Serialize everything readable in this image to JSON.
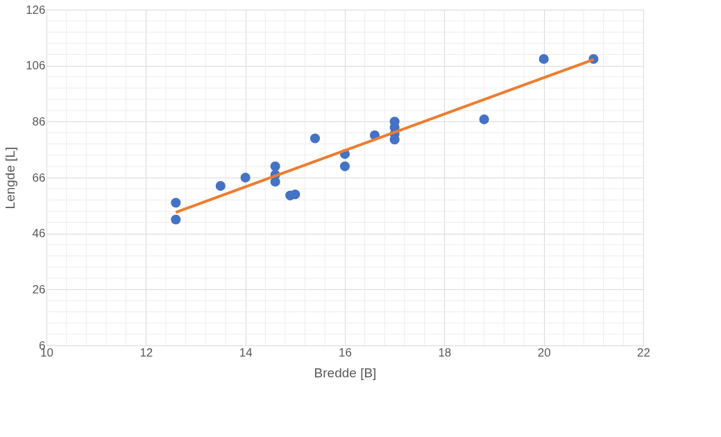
{
  "chart_data": {
    "type": "scatter",
    "xlabel": "Bredde [B]",
    "ylabel": "Lengde [L]",
    "xlim": [
      10,
      22
    ],
    "xticks": [
      10,
      12,
      14,
      16,
      18,
      20,
      22
    ],
    "ylim": [
      6,
      126
    ],
    "yticks": [
      6,
      26,
      46,
      66,
      86,
      106,
      126
    ],
    "grid": true,
    "series": [
      {
        "marker": "circle",
        "color": "#4472c4",
        "x": [
          12.6,
          12.6,
          13.5,
          14.0,
          14.6,
          14.6,
          14.6,
          14.9,
          15.0,
          15.4,
          16.0,
          16.0,
          16.6,
          17.0,
          17.0,
          17.0,
          17.0,
          18.8,
          20.0,
          21.0
        ],
        "values": [
          57,
          51,
          63,
          66,
          70,
          67,
          64.5,
          59.6,
          60,
          80,
          74.4,
          70,
          81.1,
          86,
          83.9,
          81.6,
          79.6,
          86.8,
          108.4,
          108.4
        ]
      },
      {
        "type": "line",
        "marker": "none",
        "color": "#ed7d31",
        "x": [
          12.6,
          21.0
        ],
        "values": [
          53.6,
          108.2
        ]
      }
    ]
  }
}
